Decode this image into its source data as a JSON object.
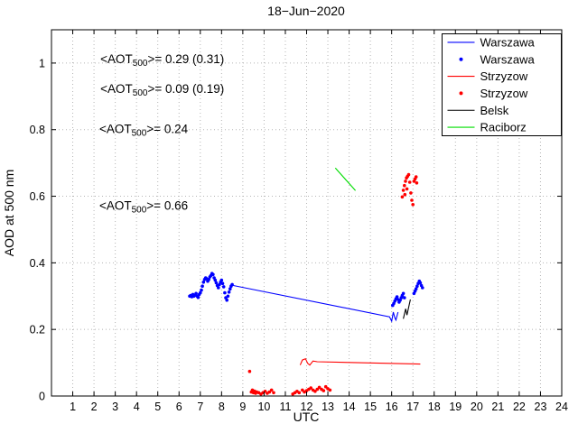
{
  "chart_data": {
    "type": "line+scatter",
    "title": "18−Jun−2020",
    "xlabel": "UTC",
    "ylabel": "AOD at 500 nm",
    "xlim": [
      0,
      24
    ],
    "ylim": [
      0,
      1.1
    ],
    "grid": true,
    "xticks": [
      1,
      2,
      3,
      4,
      5,
      6,
      7,
      8,
      9,
      10,
      11,
      12,
      13,
      14,
      15,
      16,
      17,
      18,
      19,
      20,
      21,
      22,
      23,
      24
    ],
    "xtick_labels": [
      "1",
      "2",
      "3",
      "4",
      "5",
      "6",
      "7",
      "8",
      "9",
      "10",
      "11",
      "12",
      "13",
      "14",
      "15",
      "16",
      "17",
      "18",
      "19",
      "20",
      "21",
      "22",
      "23",
      "24"
    ],
    "yticks": [
      0,
      0.2,
      0.4,
      0.6,
      0.8,
      1
    ],
    "ytick_labels": [
      "0",
      "0.2",
      "0.4",
      "0.6",
      "0.8",
      "1"
    ],
    "legend": {
      "position": "top-right",
      "entries": [
        {
          "label": "Warszawa",
          "color": "#0000ff",
          "sample": "line"
        },
        {
          "label": "Warszawa",
          "color": "#0000ff",
          "sample": "dot"
        },
        {
          "label": "Strzyzow",
          "color": "#ff0000",
          "sample": "line"
        },
        {
          "label": "Strzyzow",
          "color": "#ff0000",
          "sample": "dot"
        },
        {
          "label": "Belsk",
          "color": "#000000",
          "sample": "line"
        },
        {
          "label": "Raciborz",
          "color": "#00dd00",
          "sample": "line"
        }
      ]
    },
    "annotations": [
      {
        "pre": "<AOT",
        "sub": "500",
        "post": ">= 0.29 (0.31)",
        "color": "#0000ff",
        "x": 2.3,
        "y": 1.0
      },
      {
        "pre": "<AOT",
        "sub": "500",
        "post": ">= 0.09 (0.19)",
        "color": "#ff0000",
        "x": 2.3,
        "y": 0.91
      },
      {
        "pre": "<AOT",
        "sub": "500",
        "post": ">= 0.24",
        "color": "#000000",
        "x": 2.25,
        "y": 0.79
      },
      {
        "pre": "<AOT",
        "sub": "500",
        "post": ">= 0.66",
        "color": "#00dd00",
        "x": 2.25,
        "y": 0.56
      }
    ],
    "series": [
      {
        "name": "Warszawa",
        "type": "line",
        "color": "#0000ff",
        "points": [
          [
            8.55,
            0.332
          ],
          [
            15.9,
            0.238
          ],
          [
            16.0,
            0.225
          ],
          [
            16.08,
            0.252
          ],
          [
            16.15,
            0.235
          ],
          [
            16.2,
            0.228
          ],
          [
            16.3,
            0.252
          ]
        ]
      },
      {
        "name": "Warszawa",
        "type": "scatter",
        "color": "#0000ff",
        "points": [
          [
            6.5,
            0.3
          ],
          [
            6.55,
            0.302
          ],
          [
            6.6,
            0.298
          ],
          [
            6.65,
            0.305
          ],
          [
            6.7,
            0.3
          ],
          [
            6.75,
            0.303
          ],
          [
            6.8,
            0.308
          ],
          [
            6.85,
            0.3
          ],
          [
            6.9,
            0.296
          ],
          [
            6.95,
            0.305
          ],
          [
            7.0,
            0.31
          ],
          [
            7.05,
            0.318
          ],
          [
            7.1,
            0.33
          ],
          [
            7.15,
            0.342
          ],
          [
            7.2,
            0.35
          ],
          [
            7.25,
            0.355
          ],
          [
            7.3,
            0.352
          ],
          [
            7.35,
            0.345
          ],
          [
            7.4,
            0.35
          ],
          [
            7.45,
            0.358
          ],
          [
            7.5,
            0.362
          ],
          [
            7.55,
            0.368
          ],
          [
            7.6,
            0.365
          ],
          [
            7.65,
            0.355
          ],
          [
            7.7,
            0.348
          ],
          [
            7.75,
            0.34
          ],
          [
            7.8,
            0.332
          ],
          [
            7.85,
            0.325
          ],
          [
            7.9,
            0.335
          ],
          [
            7.95,
            0.342
          ],
          [
            8.0,
            0.348
          ],
          [
            8.05,
            0.338
          ],
          [
            8.1,
            0.328
          ],
          [
            8.15,
            0.31
          ],
          [
            8.2,
            0.295
          ],
          [
            8.25,
            0.288
          ],
          [
            8.3,
            0.3
          ],
          [
            8.35,
            0.312
          ],
          [
            8.4,
            0.322
          ],
          [
            8.45,
            0.33
          ],
          [
            8.5,
            0.335
          ],
          [
            16.05,
            0.272
          ],
          [
            16.1,
            0.278
          ],
          [
            16.15,
            0.285
          ],
          [
            16.2,
            0.292
          ],
          [
            16.25,
            0.298
          ],
          [
            16.3,
            0.29
          ],
          [
            16.35,
            0.282
          ],
          [
            16.4,
            0.288
          ],
          [
            16.45,
            0.295
          ],
          [
            16.5,
            0.302
          ],
          [
            16.55,
            0.308
          ],
          [
            16.6,
            0.295
          ],
          [
            17.05,
            0.308
          ],
          [
            17.1,
            0.315
          ],
          [
            17.15,
            0.322
          ],
          [
            17.2,
            0.33
          ],
          [
            17.25,
            0.338
          ],
          [
            17.3,
            0.345
          ],
          [
            17.35,
            0.34
          ],
          [
            17.4,
            0.332
          ],
          [
            17.45,
            0.325
          ]
        ]
      },
      {
        "name": "Strzyzow",
        "type": "line",
        "color": "#ff0000",
        "points": [
          [
            11.7,
            0.093
          ],
          [
            11.8,
            0.108
          ],
          [
            11.95,
            0.112
          ],
          [
            12.05,
            0.098
          ],
          [
            12.15,
            0.093
          ],
          [
            12.3,
            0.105
          ],
          [
            12.5,
            0.103
          ],
          [
            17.35,
            0.096
          ]
        ]
      },
      {
        "name": "Strzyzow",
        "type": "scatter",
        "color": "#ff0000",
        "points": [
          [
            9.32,
            0.074
          ],
          [
            9.4,
            0.012
          ],
          [
            9.45,
            0.018
          ],
          [
            9.5,
            0.01
          ],
          [
            9.55,
            0.015
          ],
          [
            9.6,
            0.008
          ],
          [
            9.65,
            0.012
          ],
          [
            9.75,
            0.01
          ],
          [
            9.85,
            0.006
          ],
          [
            9.95,
            0.01
          ],
          [
            10.05,
            0.014
          ],
          [
            10.15,
            0.008
          ],
          [
            10.25,
            0.012
          ],
          [
            10.35,
            0.018
          ],
          [
            10.45,
            0.01
          ],
          [
            11.35,
            0.006
          ],
          [
            11.45,
            0.01
          ],
          [
            11.55,
            0.014
          ],
          [
            11.65,
            0.01
          ],
          [
            11.8,
            0.018
          ],
          [
            11.9,
            0.012
          ],
          [
            12.0,
            0.016
          ],
          [
            12.1,
            0.02
          ],
          [
            12.2,
            0.024
          ],
          [
            12.3,
            0.018
          ],
          [
            12.4,
            0.014
          ],
          [
            12.5,
            0.02
          ],
          [
            12.6,
            0.026
          ],
          [
            12.7,
            0.02
          ],
          [
            12.8,
            0.016
          ],
          [
            12.9,
            0.028
          ],
          [
            13.0,
            0.022
          ],
          [
            13.1,
            0.018
          ],
          [
            16.5,
            0.598
          ],
          [
            16.55,
            0.618
          ],
          [
            16.6,
            0.632
          ],
          [
            16.62,
            0.605
          ],
          [
            16.65,
            0.645
          ],
          [
            16.7,
            0.655
          ],
          [
            16.72,
            0.622
          ],
          [
            16.75,
            0.66
          ],
          [
            16.8,
            0.665
          ],
          [
            16.85,
            0.642
          ],
          [
            16.9,
            0.61
          ],
          [
            16.95,
            0.588
          ],
          [
            17.0,
            0.575
          ],
          [
            17.05,
            0.645
          ],
          [
            17.1,
            0.652
          ],
          [
            17.15,
            0.658
          ],
          [
            17.18,
            0.64
          ]
        ]
      },
      {
        "name": "Belsk",
        "type": "line",
        "color": "#000000",
        "points": [
          [
            16.55,
            0.232
          ],
          [
            16.66,
            0.262
          ],
          [
            16.72,
            0.243
          ],
          [
            16.88,
            0.29
          ]
        ]
      },
      {
        "name": "Raciborz",
        "type": "line",
        "color": "#00dd00",
        "points": [
          [
            13.35,
            0.685
          ],
          [
            14.3,
            0.617
          ]
        ]
      }
    ]
  }
}
